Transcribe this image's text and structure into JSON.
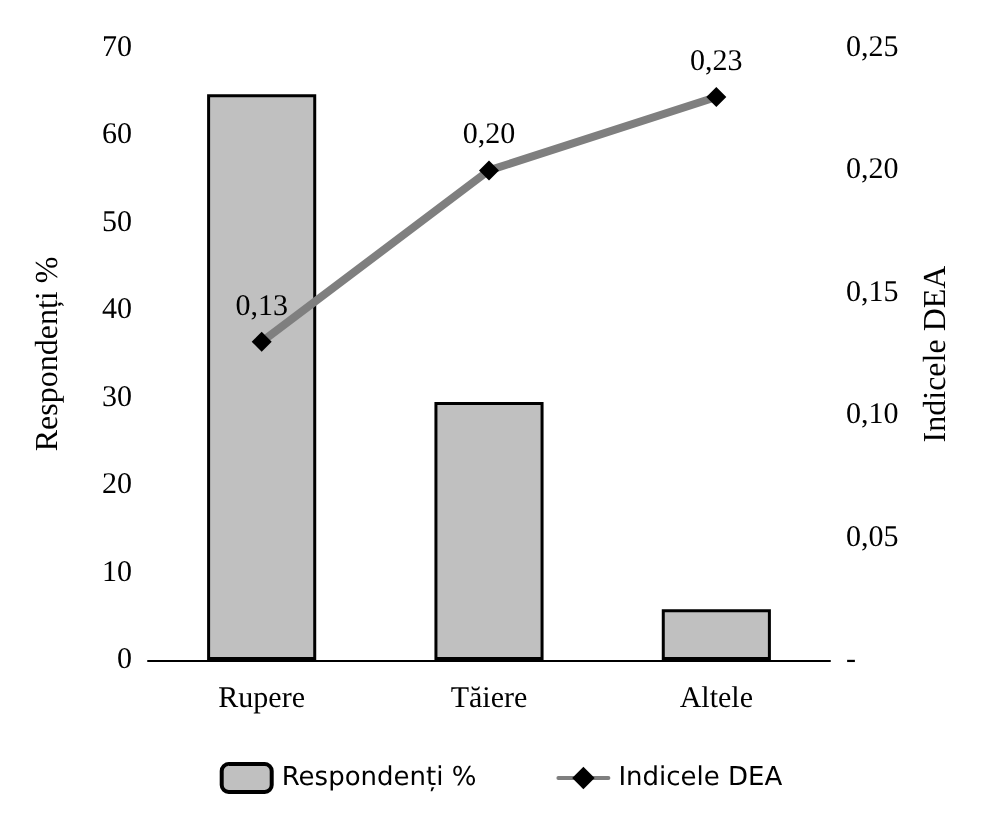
{
  "chart_data": {
    "type": "bar",
    "categories": [
      "Rupere",
      "Tăiere",
      "Altele"
    ],
    "ylabel": "Respondenți %",
    "y2label": "Indicele DEA",
    "series": [
      {
        "name": "Respondenți %",
        "color": "#c0c0c0",
        "values": [
          64.7,
          29.5,
          5.8
        ]
      },
      {
        "name": "Indicele DEA",
        "type": "line",
        "axis": "y2",
        "color": "#7f7f7f",
        "marker": "diamond",
        "values": [
          0.13,
          0.2,
          0.23
        ],
        "value_labels": [
          "0,13",
          "0,20",
          "0,23"
        ]
      }
    ],
    "ylim": [
      0,
      70
    ],
    "yticks": [
      0,
      10,
      20,
      30,
      40,
      50,
      60,
      70
    ],
    "y2lim": [
      0,
      0.25
    ],
    "y2ticks": [
      {
        "value": 0,
        "label": "-"
      },
      {
        "value": 0.05,
        "label": "0,05"
      },
      {
        "value": 0.1,
        "label": "0,10"
      },
      {
        "value": 0.15,
        "label": "0,15"
      },
      {
        "value": 0.2,
        "label": "0,20"
      },
      {
        "value": 0.25,
        "label": "0,25"
      }
    ],
    "grid": false,
    "legend": "bottom"
  }
}
